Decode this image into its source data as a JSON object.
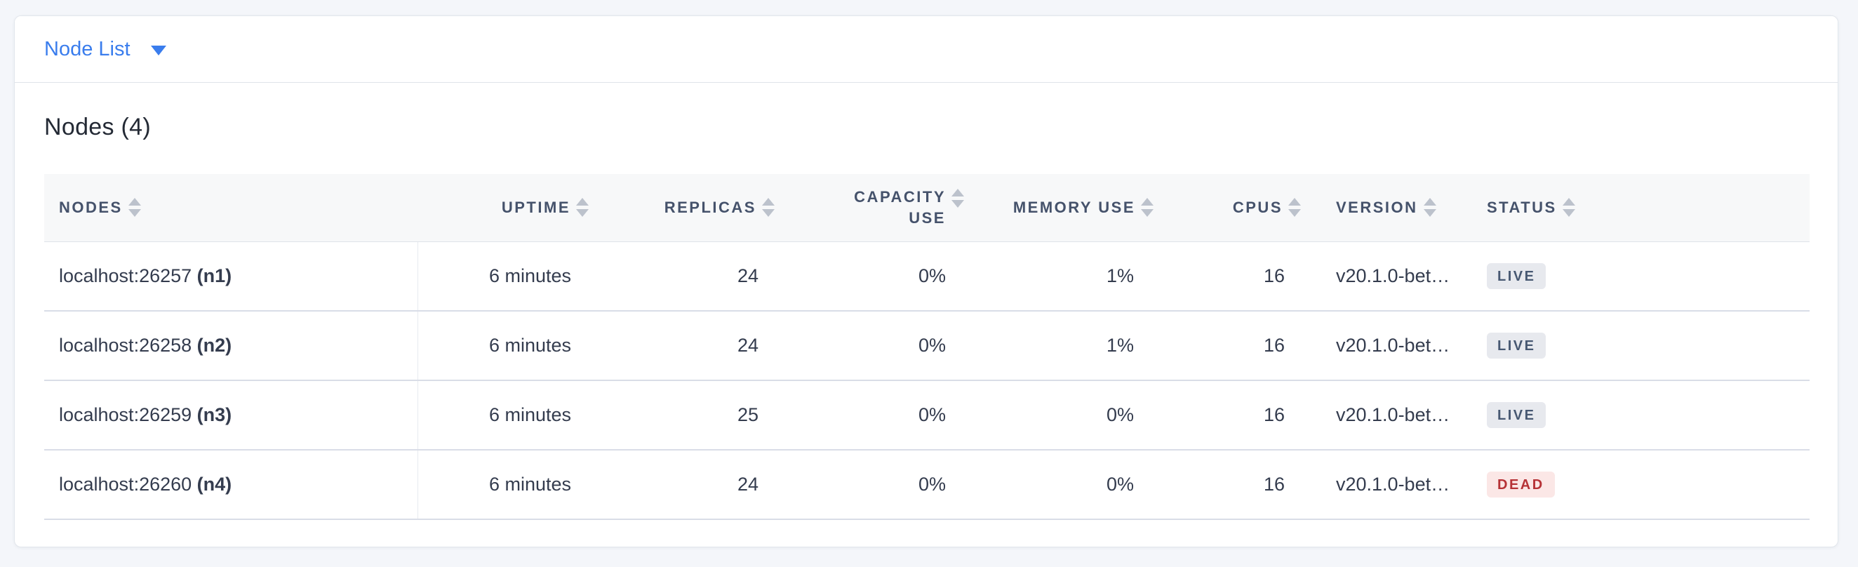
{
  "toolbar": {
    "view_dropdown_label": "Node List"
  },
  "panel": {
    "title": "Nodes (4)",
    "table": {
      "columns": [
        {
          "label": "NODES"
        },
        {
          "label": "UPTIME"
        },
        {
          "label": "REPLICAS"
        },
        {
          "label": "CAPACITY USE"
        },
        {
          "label": "MEMORY USE"
        },
        {
          "label": "CPUS"
        },
        {
          "label": "VERSION"
        },
        {
          "label": "STATUS"
        }
      ],
      "rows": [
        {
          "address": "localhost:26257",
          "name": "(n1)",
          "uptime": "6 minutes",
          "replicas": "24",
          "capacity_use": "0%",
          "memory_use": "1%",
          "cpus": "16",
          "version": "v20.1.0-bet…",
          "status": "LIVE"
        },
        {
          "address": "localhost:26258",
          "name": "(n2)",
          "uptime": "6 minutes",
          "replicas": "24",
          "capacity_use": "0%",
          "memory_use": "1%",
          "cpus": "16",
          "version": "v20.1.0-bet…",
          "status": "LIVE"
        },
        {
          "address": "localhost:26259",
          "name": "(n3)",
          "uptime": "6 minutes",
          "replicas": "25",
          "capacity_use": "0%",
          "memory_use": "0%",
          "cpus": "16",
          "version": "v20.1.0-bet…",
          "status": "LIVE"
        },
        {
          "address": "localhost:26260",
          "name": "(n4)",
          "uptime": "6 minutes",
          "replicas": "24",
          "capacity_use": "0%",
          "memory_use": "0%",
          "cpus": "16",
          "version": "v20.1.0-bet…",
          "status": "DEAD"
        }
      ]
    }
  },
  "colors": {
    "accent_blue": "#3a7ded",
    "live_badge_bg": "#e7e9ee",
    "live_badge_text": "#475872",
    "dead_badge_bg": "#fbe7e6",
    "dead_badge_text": "#b63236",
    "header_row_bg": "#f7f8f9",
    "page_bg": "#f4f6fa"
  }
}
